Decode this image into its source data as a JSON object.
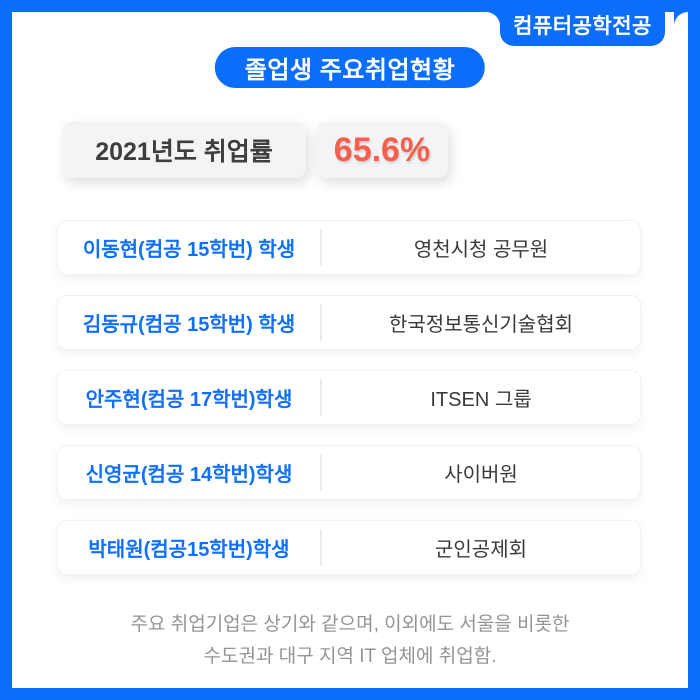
{
  "major_badge": {
    "label": "컴퓨터공학전공"
  },
  "title": {
    "label": "졸업생 주요취업현황"
  },
  "stats": {
    "year_label": "2021년도 취업률",
    "rate_value": "65.6%"
  },
  "rows": [
    {
      "student": "이동현(컴공 15학번) 학생",
      "company": "영천시청 공무원"
    },
    {
      "student": "김동규(컴공 15학번) 학생",
      "company": "한국정보통신기술협회"
    },
    {
      "student": "안주현(컴공 17학번)학생",
      "company": "ITSEN 그룹"
    },
    {
      "student": "신영균(컴공 14학번)학생",
      "company": "사이버원"
    },
    {
      "student": "박태원(컴공15학번)학생",
      "company": "군인공제회"
    }
  ],
  "footer": {
    "line1": "주요 취업기업은 상기와 같으며, 이외에도 서울을 비롯한",
    "line2": "수도권과 대구 지역 IT 업체에 취업함."
  },
  "colors": {
    "accent_blue": "#0A6EFA",
    "rate_coral": "#F4604D"
  }
}
